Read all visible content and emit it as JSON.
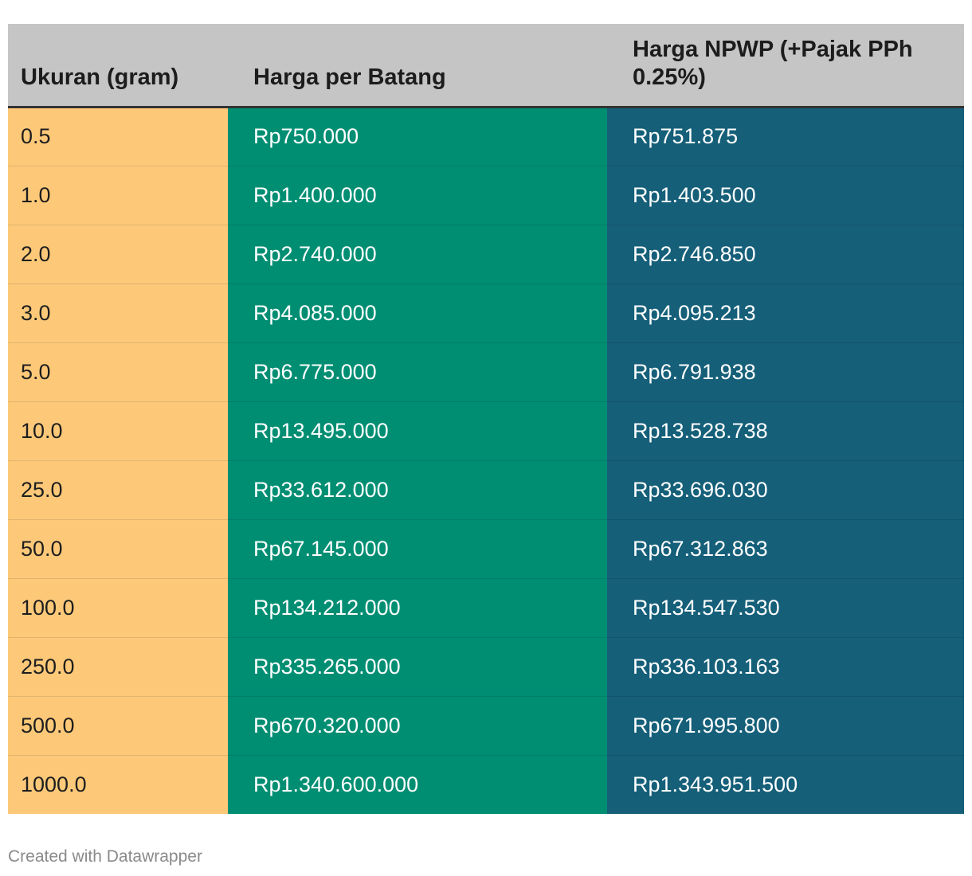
{
  "chart_data": {
    "type": "table",
    "columns": [
      "Ukuran (gram)",
      "Harga per Batang",
      "Harga NPWP (+Pajak PPh 0.25%)"
    ],
    "rows": [
      [
        "0.5",
        "Rp750.000",
        "Rp751.875"
      ],
      [
        "1.0",
        "Rp1.400.000",
        "Rp1.403.500"
      ],
      [
        "2.0",
        "Rp2.740.000",
        "Rp2.746.850"
      ],
      [
        "3.0",
        "Rp4.085.000",
        "Rp4.095.213"
      ],
      [
        "5.0",
        "Rp6.775.000",
        "Rp6.791.938"
      ],
      [
        "10.0",
        "Rp13.495.000",
        "Rp13.528.738"
      ],
      [
        "25.0",
        "Rp33.612.000",
        "Rp33.696.030"
      ],
      [
        "50.0",
        "Rp67.145.000",
        "Rp67.312.863"
      ],
      [
        "100.0",
        "Rp134.212.000",
        "Rp134.547.530"
      ],
      [
        "250.0",
        "Rp335.265.000",
        "Rp336.103.163"
      ],
      [
        "500.0",
        "Rp670.320.000",
        "Rp671.995.800"
      ],
      [
        "1000.0",
        "Rp1.340.600.000",
        "Rp1.343.951.500"
      ]
    ],
    "column_colors": [
      "#fdc979",
      "#008e73",
      "#155f79"
    ],
    "header_color": "#c5c5c5"
  },
  "footer": {
    "credit": "Created with Datawrapper"
  }
}
